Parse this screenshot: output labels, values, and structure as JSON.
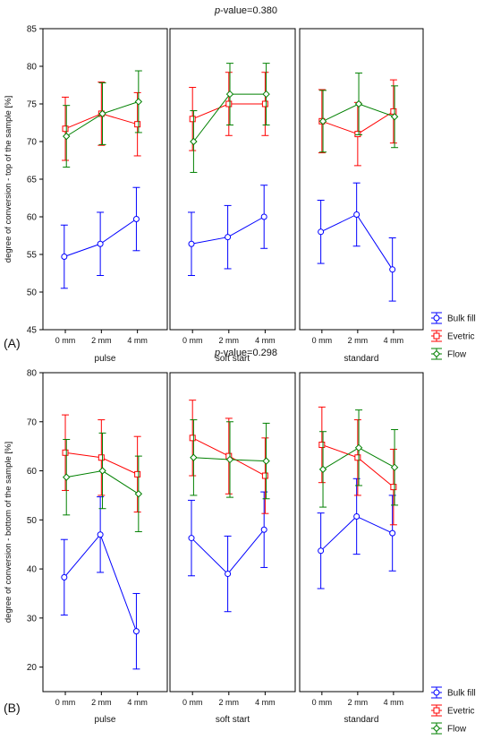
{
  "legend": {
    "series": [
      {
        "name": "Bulk fill",
        "color": "#0000ff",
        "marker": "circle"
      },
      {
        "name": "Evetric",
        "color": "#ff0000",
        "marker": "square"
      },
      {
        "name": "Flow",
        "color": "#008000",
        "marker": "diamond"
      }
    ]
  },
  "chart_data": [
    {
      "type": "line",
      "panel_label": "(A)",
      "title_prefix": "p",
      "title_suffix": "-value=0.380",
      "ylabel": "degree of conversion - top of the sample [%]",
      "ylim": [
        45,
        85
      ],
      "yticks": [
        "45",
        "50",
        "55",
        "60",
        "65",
        "70",
        "75",
        "80",
        "85"
      ],
      "categories": [
        "0 mm",
        "2 mm",
        "4 mm"
      ],
      "groups": [
        "pulse",
        "soft start",
        "standard"
      ],
      "series": [
        {
          "name": "Bulk fill",
          "values": [
            [
              54.7,
              56.4,
              59.7
            ],
            [
              56.4,
              57.3,
              60.0
            ],
            [
              58.0,
              60.3,
              53.0
            ]
          ],
          "errors": [
            [
              4.2,
              4.2,
              4.2
            ],
            [
              4.2,
              4.2,
              4.2
            ],
            [
              4.2,
              4.2,
              4.2
            ]
          ]
        },
        {
          "name": "Evetric",
          "values": [
            [
              71.7,
              73.7,
              72.3
            ],
            [
              73.0,
              75.0,
              75.0
            ],
            [
              72.7,
              71.0,
              74.0
            ]
          ],
          "errors": [
            [
              4.2,
              4.2,
              4.2
            ],
            [
              4.2,
              4.2,
              4.2
            ],
            [
              4.2,
              4.2,
              4.2
            ]
          ]
        },
        {
          "name": "Flow",
          "values": [
            [
              70.7,
              73.7,
              75.3
            ],
            [
              70.0,
              76.3,
              76.3
            ],
            [
              72.7,
              75.0,
              73.3
            ]
          ],
          "errors": [
            [
              4.1,
              4.1,
              4.1
            ],
            [
              4.1,
              4.1,
              4.1
            ],
            [
              4.1,
              4.1,
              4.1
            ]
          ]
        }
      ]
    },
    {
      "type": "line",
      "panel_label": "(B)",
      "title_prefix": "p",
      "title_suffix": "-value=0.298",
      "ylabel": "degree of conversion - bottom of the sample [%]",
      "ylim": [
        15,
        80
      ],
      "yticks": [
        "20",
        "30",
        "40",
        "50",
        "60",
        "70",
        "80"
      ],
      "categories": [
        "0 mm",
        "2 mm",
        "4 mm"
      ],
      "groups": [
        "pulse",
        "soft start",
        "standard"
      ],
      "series": [
        {
          "name": "Bulk fill",
          "values": [
            [
              38.3,
              47.0,
              27.3
            ],
            [
              46.3,
              39.0,
              48.0
            ],
            [
              43.7,
              50.7,
              47.3
            ]
          ],
          "errors": [
            [
              7.7,
              7.7,
              7.7
            ],
            [
              7.7,
              7.7,
              7.7
            ],
            [
              7.7,
              7.7,
              7.7
            ]
          ]
        },
        {
          "name": "Evetric",
          "values": [
            [
              63.7,
              62.7,
              59.3
            ],
            [
              66.7,
              63.0,
              59.0
            ],
            [
              65.3,
              62.7,
              56.7
            ]
          ],
          "errors": [
            [
              7.7,
              7.7,
              7.7
            ],
            [
              7.7,
              7.7,
              7.7
            ],
            [
              7.7,
              7.7,
              7.7
            ]
          ]
        },
        {
          "name": "Flow",
          "values": [
            [
              58.7,
              60.0,
              55.3
            ],
            [
              62.7,
              62.3,
              62.0
            ],
            [
              60.3,
              64.7,
              60.7
            ]
          ],
          "errors": [
            [
              7.7,
              7.7,
              7.7
            ],
            [
              7.7,
              7.7,
              7.7
            ],
            [
              7.7,
              7.7,
              7.7
            ]
          ]
        }
      ]
    }
  ]
}
